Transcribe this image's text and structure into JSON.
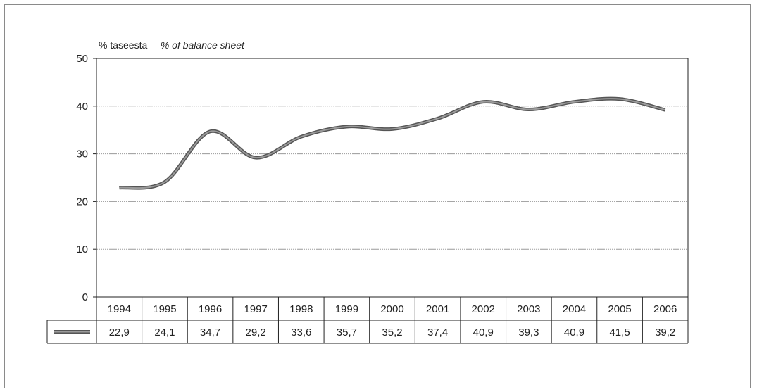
{
  "chart_data": {
    "type": "line",
    "ylabel_prefix": "% taseesta –",
    "ylabel_italic": "% of balance sheet",
    "ylim": [
      0,
      50
    ],
    "yticks": [
      0,
      10,
      20,
      30,
      40,
      50
    ],
    "grid": true,
    "categories": [
      "1994",
      "1995",
      "1996",
      "1997",
      "1998",
      "1999",
      "2000",
      "2001",
      "2002",
      "2003",
      "2004",
      "2005",
      "2006"
    ],
    "series": [
      {
        "values": [
          22.9,
          24.1,
          34.7,
          29.2,
          33.6,
          35.7,
          35.2,
          37.4,
          40.9,
          39.3,
          40.9,
          41.5,
          39.2
        ],
        "labels": [
          "22,9",
          "24,1",
          "34,7",
          "29,2",
          "33,6",
          "35,7",
          "35,2",
          "37,4",
          "40,9",
          "39,3",
          "40,9",
          "41,5",
          "39,2"
        ]
      }
    ],
    "colors": {
      "line_outer": "#555555",
      "line_inner": "#9a9a9a",
      "grid": "#9a9a9a",
      "axis": "#222222"
    }
  }
}
